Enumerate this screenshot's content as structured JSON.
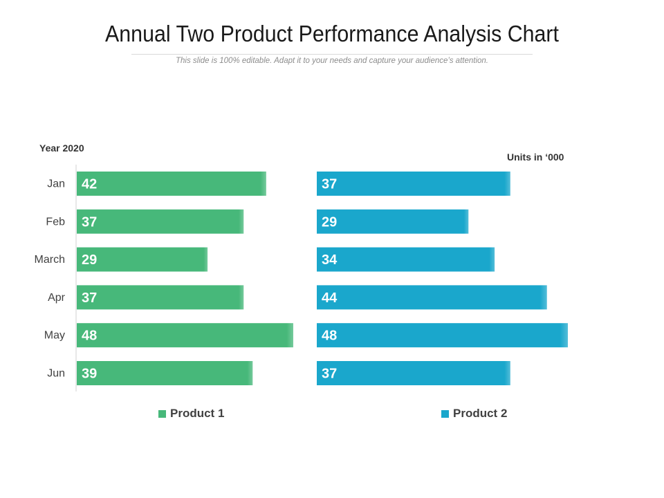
{
  "title": "Annual Two Product Performance Analysis Chart",
  "subtitle": "This slide is 100% editable. Adapt it to your needs and capture your audience’s attention.",
  "year_label": "Year 2020",
  "units_label": "Units in ‘000",
  "colors": {
    "product1": "#47b87a",
    "product2": "#1aa7cc"
  },
  "chart_data": {
    "type": "bar",
    "orientation": "horizontal",
    "categories": [
      "Jan",
      "Feb",
      "March",
      "Apr",
      "May",
      "Jun"
    ],
    "series": [
      {
        "name": "Product 1",
        "values": [
          42,
          37,
          29,
          37,
          48,
          39
        ]
      },
      {
        "name": "Product 2",
        "values": [
          37,
          29,
          34,
          44,
          48,
          37
        ]
      }
    ],
    "title": "Annual Two Product Performance Analysis Chart",
    "xlabel": "Units in ‘000",
    "ylabel": "Year 2020",
    "xlim": [
      0,
      48
    ],
    "legend": "bottom"
  }
}
